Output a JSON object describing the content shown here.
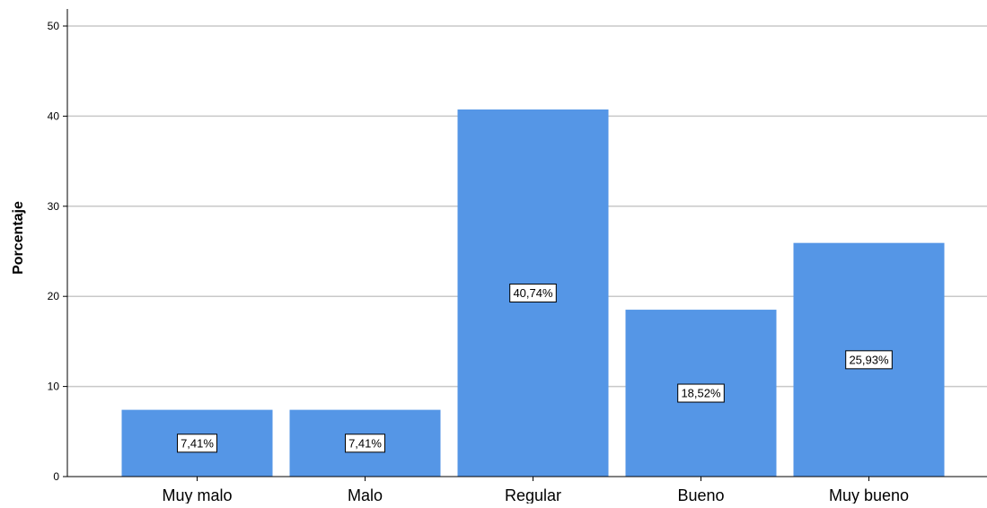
{
  "chart_data": {
    "type": "bar",
    "categories": [
      "Muy malo",
      "Malo",
      "Regular",
      "Bueno",
      "Muy bueno"
    ],
    "values": [
      7.41,
      7.41,
      40.74,
      18.52,
      25.93
    ],
    "data_labels": [
      "7,41%",
      "7,41%",
      "40,74%",
      "18,52%",
      "25,93%"
    ],
    "title": "",
    "xlabel": "",
    "ylabel": "Porcentaje",
    "ylim": [
      0,
      50
    ],
    "yticks": [
      0,
      10,
      20,
      30,
      40,
      50
    ],
    "ytick_labels": [
      "0",
      "10",
      "20",
      "30",
      "40",
      "50"
    ],
    "grid": "horizontal",
    "legend": "none",
    "bar_color": "#5596E6",
    "grid_color": "#C8C8C8"
  }
}
